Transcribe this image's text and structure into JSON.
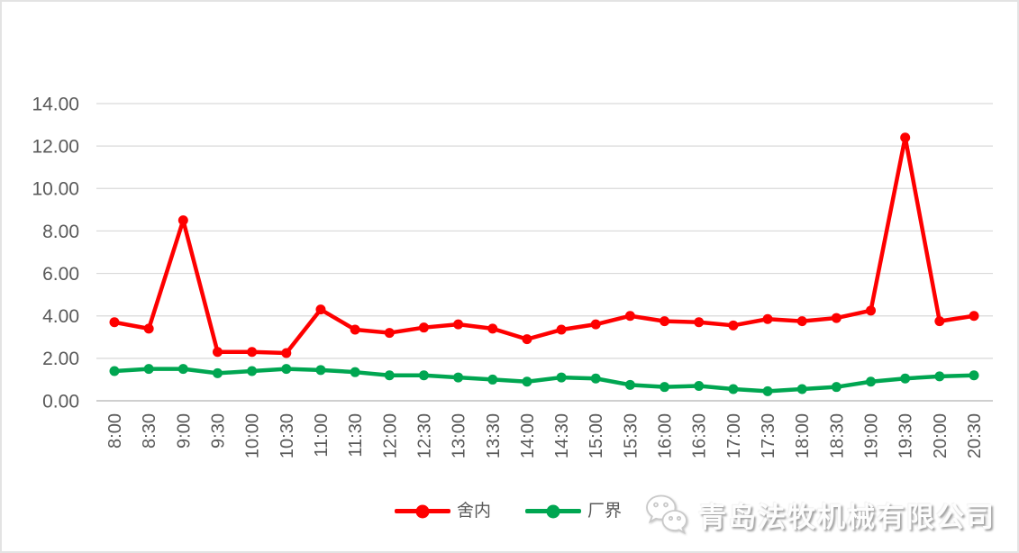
{
  "chart_data": {
    "type": "line",
    "title": "",
    "xlabel": "",
    "ylabel": "",
    "categories": [
      "8:00",
      "8:30",
      "9:00",
      "9:30",
      "10:00",
      "10:30",
      "11:00",
      "11:30",
      "12:00",
      "12:30",
      "13:00",
      "13:30",
      "14:00",
      "14:30",
      "15:00",
      "15:30",
      "16:00",
      "16:30",
      "17:00",
      "17:30",
      "18:00",
      "18:30",
      "19:00",
      "19:30",
      "20:00",
      "20:30"
    ],
    "series": [
      {
        "name": "舍内",
        "color": "#fe0000",
        "values": [
          3.7,
          3.4,
          8.5,
          2.3,
          2.3,
          2.25,
          4.3,
          3.35,
          3.2,
          3.45,
          3.6,
          3.4,
          2.9,
          3.35,
          3.6,
          4.0,
          3.75,
          3.7,
          3.55,
          3.85,
          3.75,
          3.9,
          4.25,
          12.4,
          3.75,
          4.0
        ]
      },
      {
        "name": "厂界",
        "color": "#00a651",
        "values": [
          1.4,
          1.5,
          1.5,
          1.3,
          1.4,
          1.5,
          1.45,
          1.35,
          1.2,
          1.2,
          1.1,
          1.0,
          0.9,
          1.1,
          1.05,
          0.75,
          0.65,
          0.7,
          0.55,
          0.45,
          0.55,
          0.65,
          0.9,
          1.05,
          1.15,
          1.2
        ]
      }
    ],
    "ylim": [
      0,
      14
    ],
    "y_tick_step": 2,
    "y_tick_format": "two-decimals",
    "y_tick_labels": [
      "0.00",
      "2.00",
      "4.00",
      "6.00",
      "8.00",
      "10.00",
      "12.00",
      "14.00"
    ],
    "grid": true,
    "gridline_color": "#d9d9d9",
    "axis_line_color": "#bfbfbf",
    "tick_label_color": "#595959",
    "x_tick_rotation": 90,
    "legend_position": "bottom"
  },
  "watermark": {
    "icon": "wechat-logo",
    "text": "青岛法牧机械有限公司"
  }
}
